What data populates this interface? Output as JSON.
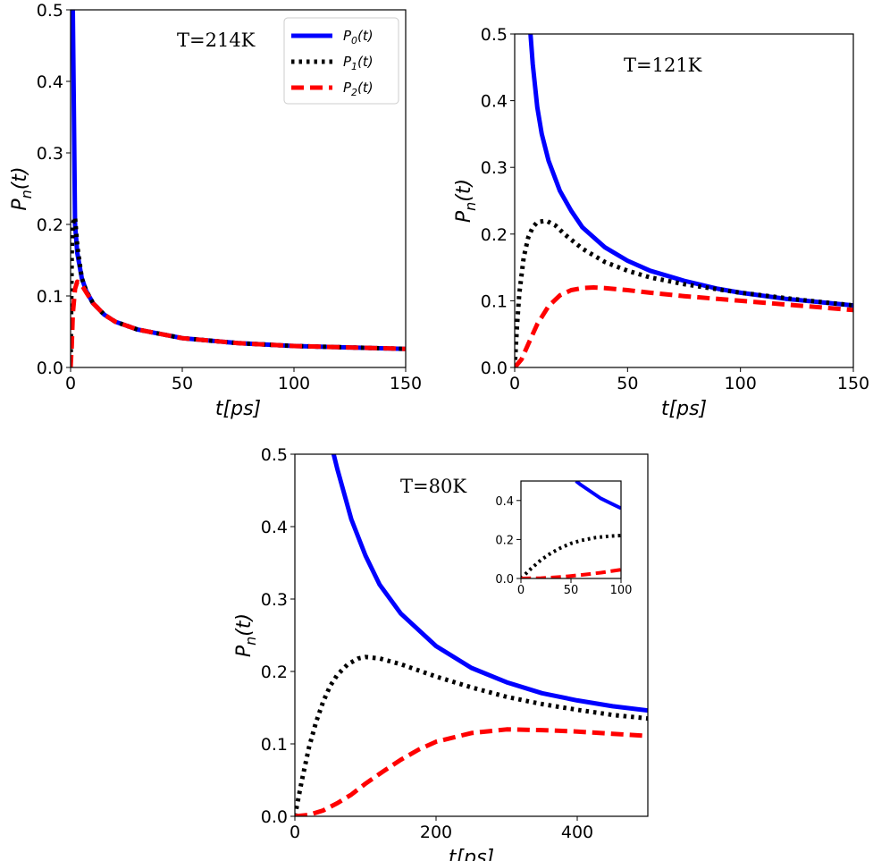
{
  "chart_data": [
    {
      "type": "line",
      "annotation": "T=214K",
      "xlabel": "t[ps]",
      "ylabel": "Pn(t)",
      "xlim": [
        0,
        150
      ],
      "ylim": [
        0,
        0.5
      ],
      "xticks": [
        "0",
        "50",
        "100",
        "150"
      ],
      "yticks": [
        "0.0",
        "0.1",
        "0.2",
        "0.3",
        "0.4",
        "0.5"
      ],
      "legend": {
        "position": "top-right",
        "entries": [
          "P0(t)",
          "P1(t)",
          "P2(t)"
        ]
      },
      "series": [
        {
          "name": "P0(t)",
          "color": "#0000ff",
          "style": "solid",
          "x": [
            1,
            2,
            3,
            5,
            7,
            10,
            15,
            20,
            30,
            50,
            75,
            100,
            125,
            150
          ],
          "y": [
            0.5,
            0.2,
            0.16,
            0.125,
            0.107,
            0.09,
            0.074,
            0.064,
            0.053,
            0.041,
            0.034,
            0.03,
            0.028,
            0.026
          ]
        },
        {
          "name": "P1(t)",
          "color": "#000000",
          "style": "dotted",
          "x": [
            0,
            0.5,
            1,
            2,
            3,
            5,
            7,
            10,
            15,
            20,
            30,
            50,
            75,
            100,
            125,
            150
          ],
          "y": [
            0,
            0.16,
            0.2,
            0.21,
            0.17,
            0.125,
            0.107,
            0.09,
            0.074,
            0.064,
            0.053,
            0.041,
            0.034,
            0.03,
            0.028,
            0.026
          ]
        },
        {
          "name": "P2(t)",
          "color": "#ff0000",
          "style": "dashed",
          "x": [
            0,
            0.5,
            1,
            2,
            3,
            5,
            7,
            10,
            15,
            20,
            30,
            50,
            75,
            100,
            125,
            150
          ],
          "y": [
            0,
            0.03,
            0.075,
            0.11,
            0.12,
            0.115,
            0.105,
            0.09,
            0.074,
            0.064,
            0.053,
            0.041,
            0.034,
            0.03,
            0.028,
            0.026
          ]
        }
      ]
    },
    {
      "type": "line",
      "annotation": "T=121K",
      "xlabel": "t[ps]",
      "ylabel": "Pn(t)",
      "xlim": [
        0,
        150
      ],
      "ylim": [
        0,
        0.5
      ],
      "xticks": [
        "0",
        "50",
        "100",
        "150"
      ],
      "yticks": [
        "0.0",
        "0.1",
        "0.2",
        "0.3",
        "0.4",
        "0.5"
      ],
      "series": [
        {
          "name": "P0(t)",
          "color": "#0000ff",
          "style": "solid",
          "x": [
            7,
            8,
            10,
            12,
            15,
            20,
            25,
            30,
            40,
            50,
            60,
            75,
            90,
            100,
            120,
            150
          ],
          "y": [
            0.5,
            0.455,
            0.39,
            0.35,
            0.31,
            0.265,
            0.235,
            0.21,
            0.18,
            0.16,
            0.145,
            0.13,
            0.118,
            0.112,
            0.103,
            0.093
          ]
        },
        {
          "name": "P1(t)",
          "color": "#000000",
          "style": "dotted",
          "x": [
            0,
            1,
            2,
            4,
            6,
            8,
            10,
            14,
            18,
            22,
            30,
            40,
            50,
            60,
            75,
            100,
            125,
            150
          ],
          "y": [
            0,
            0.06,
            0.11,
            0.165,
            0.195,
            0.21,
            0.218,
            0.22,
            0.213,
            0.2,
            0.178,
            0.158,
            0.145,
            0.135,
            0.125,
            0.112,
            0.102,
            0.093
          ]
        },
        {
          "name": "P2(t)",
          "color": "#ff0000",
          "style": "dashed",
          "x": [
            0,
            3,
            6,
            10,
            15,
            20,
            25,
            30,
            35,
            40,
            50,
            60,
            75,
            100,
            125,
            150
          ],
          "y": [
            0,
            0.012,
            0.035,
            0.065,
            0.092,
            0.108,
            0.116,
            0.119,
            0.12,
            0.119,
            0.116,
            0.112,
            0.107,
            0.1,
            0.093,
            0.086
          ]
        }
      ]
    },
    {
      "type": "line",
      "annotation": "T=80K",
      "xlabel": "t[ps]",
      "ylabel": "Pn(t)",
      "xlim": [
        0,
        500
      ],
      "ylim": [
        0,
        0.5
      ],
      "xticks": [
        "0",
        "200",
        "400"
      ],
      "yticks": [
        "0.0",
        "0.1",
        "0.2",
        "0.3",
        "0.4",
        "0.5"
      ],
      "series": [
        {
          "name": "P0(t)",
          "color": "#0000ff",
          "style": "solid",
          "x": [
            55,
            60,
            70,
            80,
            100,
            120,
            150,
            200,
            250,
            300,
            350,
            400,
            450,
            500
          ],
          "y": [
            0.5,
            0.48,
            0.445,
            0.41,
            0.36,
            0.32,
            0.28,
            0.235,
            0.205,
            0.185,
            0.17,
            0.16,
            0.152,
            0.146
          ]
        },
        {
          "name": "P1(t)",
          "color": "#000000",
          "style": "dotted",
          "x": [
            0,
            5,
            10,
            20,
            30,
            40,
            50,
            60,
            75,
            90,
            100,
            120,
            150,
            200,
            250,
            300,
            350,
            400,
            450,
            500
          ],
          "y": [
            0,
            0.025,
            0.05,
            0.095,
            0.13,
            0.158,
            0.18,
            0.195,
            0.21,
            0.218,
            0.22,
            0.218,
            0.21,
            0.193,
            0.178,
            0.165,
            0.155,
            0.147,
            0.14,
            0.135
          ]
        },
        {
          "name": "P2(t)",
          "color": "#ff0000",
          "style": "dashed",
          "x": [
            0,
            20,
            40,
            60,
            80,
            100,
            125,
            150,
            175,
            200,
            250,
            300,
            350,
            400,
            450,
            500
          ],
          "y": [
            0,
            0.002,
            0.008,
            0.018,
            0.03,
            0.045,
            0.062,
            0.078,
            0.092,
            0.103,
            0.115,
            0.12,
            0.119,
            0.117,
            0.114,
            0.111
          ]
        }
      ]
    },
    {
      "type": "line",
      "annotation": "",
      "xlim": [
        0,
        100
      ],
      "ylim": [
        0,
        0.5
      ],
      "xticks": [
        "0",
        "50",
        "100"
      ],
      "yticks": [
        "0.0",
        "0.2",
        "0.4"
      ],
      "series": [
        {
          "name": "P0(t)",
          "color": "#0000ff",
          "style": "solid",
          "x": [
            55,
            60,
            70,
            80,
            90,
            100
          ],
          "y": [
            0.5,
            0.48,
            0.445,
            0.41,
            0.385,
            0.36
          ]
        },
        {
          "name": "P1(t)",
          "color": "#000000",
          "style": "dotted",
          "x": [
            0,
            5,
            10,
            20,
            30,
            40,
            50,
            60,
            75,
            90,
            100
          ],
          "y": [
            0,
            0.025,
            0.05,
            0.095,
            0.13,
            0.158,
            0.18,
            0.195,
            0.21,
            0.218,
            0.22
          ]
        },
        {
          "name": "P2(t)",
          "color": "#ff0000",
          "style": "dashed",
          "x": [
            0,
            20,
            40,
            60,
            80,
            100
          ],
          "y": [
            0,
            0.002,
            0.008,
            0.018,
            0.03,
            0.045
          ]
        }
      ]
    }
  ]
}
